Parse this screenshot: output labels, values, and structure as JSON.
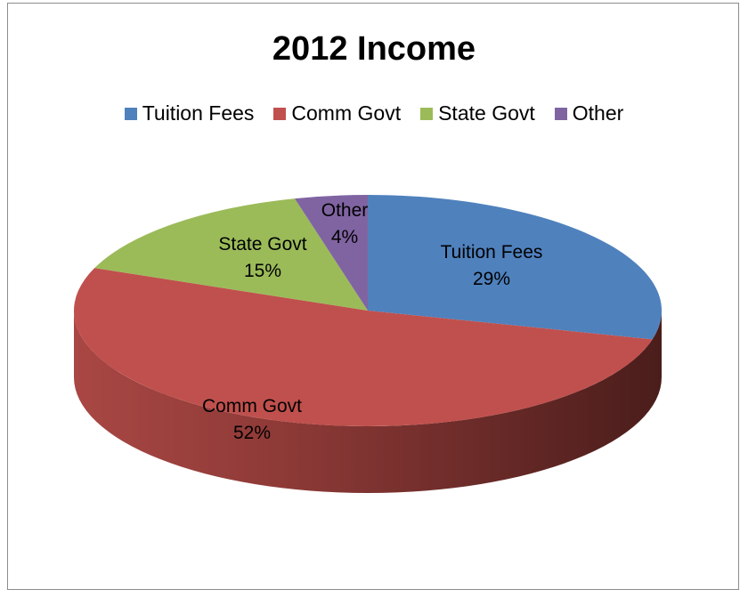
{
  "chart_data": {
    "type": "pie",
    "title": "2012 Income",
    "legend_position": "top",
    "is_3d": true,
    "slices": [
      {
        "name": "Tuition Fees",
        "value": 29,
        "label": "29%",
        "color": "#4f81bd"
      },
      {
        "name": "Comm Govt",
        "value": 52,
        "label": "52%",
        "color": "#c0504d"
      },
      {
        "name": "State Govt",
        "value": 15,
        "label": "15%",
        "color": "#9bbb59"
      },
      {
        "name": "Other",
        "value": 4,
        "label": "4%",
        "color": "#8064a2"
      }
    ]
  }
}
